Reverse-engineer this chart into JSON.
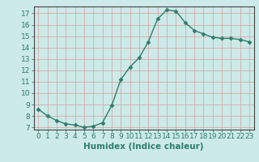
{
  "x": [
    0,
    1,
    2,
    3,
    4,
    5,
    6,
    7,
    8,
    9,
    10,
    11,
    12,
    13,
    14,
    15,
    16,
    17,
    18,
    19,
    20,
    21,
    22,
    23
  ],
  "y": [
    8.6,
    8.0,
    7.6,
    7.3,
    7.2,
    7.0,
    7.1,
    7.4,
    8.9,
    11.2,
    12.3,
    13.1,
    14.5,
    16.5,
    17.3,
    17.2,
    16.2,
    15.5,
    15.2,
    14.9,
    14.8,
    14.8,
    14.7,
    14.5
  ],
  "line_color": "#2e7d6e",
  "marker": "D",
  "marker_size": 2.5,
  "bg_color": "#cceae7",
  "grid_color": "#b0ccc8",
  "grid_minor_color": "#c8dedd",
  "xlabel": "Humidex (Indice chaleur)",
  "ylim": [
    6.8,
    17.6
  ],
  "yticks": [
    7,
    8,
    9,
    10,
    11,
    12,
    13,
    14,
    15,
    16,
    17
  ],
  "xticks": [
    0,
    1,
    2,
    3,
    4,
    5,
    6,
    7,
    8,
    9,
    10,
    11,
    12,
    13,
    14,
    15,
    16,
    17,
    18,
    19,
    20,
    21,
    22,
    23
  ],
  "label_fontsize": 7.5,
  "tick_fontsize": 6.5
}
